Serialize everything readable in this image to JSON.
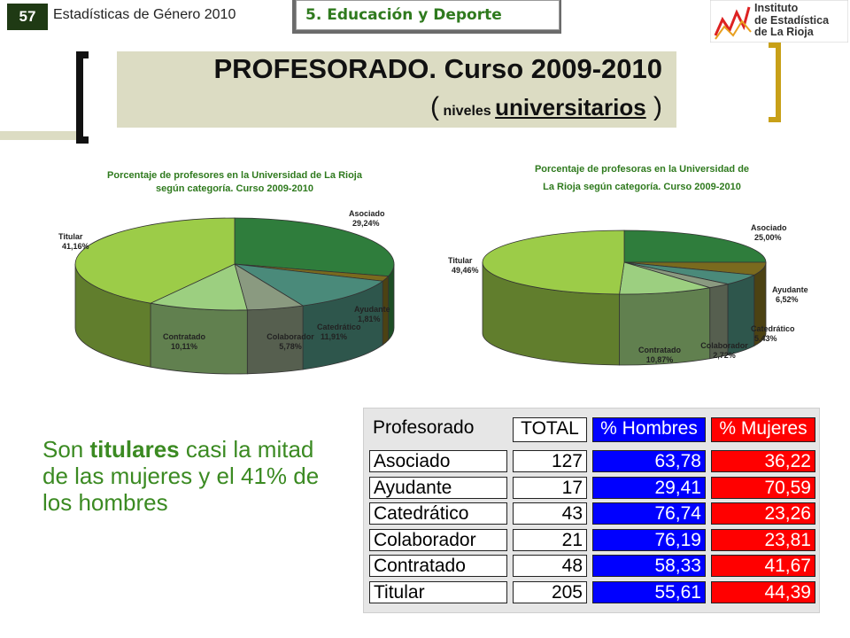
{
  "header": {
    "page_number": "57",
    "publication": "Estadísticas de Género 2010",
    "section": "5. Educación y Deporte",
    "logo_lines": [
      "Instituto",
      "de Estadística",
      "de La Rioja"
    ]
  },
  "title": {
    "main": "PROFESORADO. Curso 2009-2010",
    "sub_open": "(",
    "sub_small": " niveles ",
    "sub_underlined": "universitarios",
    "sub_close": " )"
  },
  "note": {
    "pre": "Son ",
    "bold": "titulares",
    "post": " casi la mitad de las mujeres y el 41% de los hombres"
  },
  "colors": {
    "asociado": "#2f7d3c",
    "ayudante": "#7a6a1e",
    "catedratico": "#4a8a7a",
    "colaborador": "#8a9a80",
    "contratado": "#9ccf80",
    "titular": "#9ccc48",
    "men_cell": "#0000ff",
    "women_cell": "#ff0000"
  },
  "chart_data": [
    {
      "type": "pie",
      "title": "Porcentaje de profesores en la Universidad de La Rioja según categoría. Curso 2009-2010",
      "slices": [
        {
          "label": "Asociado",
          "value": 29.24,
          "display": "29,24%"
        },
        {
          "label": "Ayudante",
          "value": 1.81,
          "display": "1,81%"
        },
        {
          "label": "Catedrático",
          "value": 11.91,
          "display": "11,91%"
        },
        {
          "label": "Colaborador",
          "value": 5.78,
          "display": "5,78%"
        },
        {
          "label": "Contratado",
          "value": 10.11,
          "display": "10,11%"
        },
        {
          "label": "Titular",
          "value": 41.16,
          "display": "41,16%"
        }
      ]
    },
    {
      "type": "pie",
      "title": "Porcentaje de profesoras en la Universidad de La Rioja según categoría. Curso 2009-2010",
      "slices": [
        {
          "label": "Asociado",
          "value": 25.0,
          "display": "25,00%"
        },
        {
          "label": "Ayudante",
          "value": 6.52,
          "display": "6,52%"
        },
        {
          "label": "Catedrático",
          "value": 5.43,
          "display": "5,43%"
        },
        {
          "label": "Colaborador",
          "value": 2.72,
          "display": "2,72%"
        },
        {
          "label": "Contratado",
          "value": 10.87,
          "display": "10,87%"
        },
        {
          "label": "Titular",
          "value": 49.46,
          "display": "49,46%"
        }
      ]
    },
    {
      "type": "table",
      "columns": [
        "Profesorado",
        "TOTAL",
        "% Hombres",
        "% Mujeres"
      ],
      "rows": [
        [
          "Asociado",
          "127",
          "63,78",
          "36,22"
        ],
        [
          "Ayudante",
          "17",
          "29,41",
          "70,59"
        ],
        [
          "Catedrático",
          "43",
          "76,74",
          "23,26"
        ],
        [
          "Colaborador",
          "21",
          "76,19",
          "23,81"
        ],
        [
          "Contratado",
          "48",
          "58,33",
          "41,67"
        ],
        [
          "Titular",
          "205",
          "55,61",
          "44,39"
        ]
      ]
    }
  ]
}
